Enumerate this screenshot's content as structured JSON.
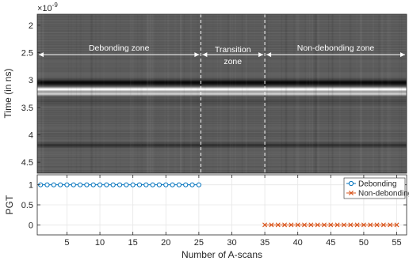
{
  "chart_data": [
    {
      "type": "heatmap",
      "ylabel": "Time (in ns)",
      "y_exponent_label": "×10",
      "y_exponent_power": "-9",
      "xlim": [
        0.5,
        56.5
      ],
      "ylim": [
        4.7,
        1.8
      ],
      "yticks": [
        "2",
        "2.5",
        "3",
        "3.5",
        "4",
        "4.5"
      ],
      "ytick_values": [
        2,
        2.5,
        3,
        3.5,
        4,
        4.5
      ],
      "colormap": "gray",
      "bands": [
        {
          "y": 3.05,
          "level": 0.03,
          "width": 0.05
        },
        {
          "y": 3.17,
          "level": 1.0,
          "width": 0.035
        },
        {
          "y": 3.25,
          "level": 0.82,
          "width": 0.03
        },
        {
          "y": 3.38,
          "level": 0.28,
          "width": 0.05
        },
        {
          "y": 4.19,
          "level": 0.18,
          "width": 0.04
        }
      ],
      "dashed_lines_x": [
        25.3,
        35
      ],
      "zones": [
        {
          "label_lines": [
            "Debonding zone"
          ],
          "from": 0.5,
          "to": 25.3,
          "y": 2.48
        },
        {
          "label_lines": [
            "Transition",
            "zone"
          ],
          "from": 25.3,
          "to": 35,
          "y": 2.48
        },
        {
          "label_lines": [
            "Non-debonding zone"
          ],
          "from": 35,
          "to": 56.5,
          "y": 2.48
        }
      ]
    },
    {
      "type": "line",
      "xlabel": "Number of A-scans",
      "ylabel": "PGT",
      "xlim": [
        0.5,
        56.5
      ],
      "ylim": [
        -0.25,
        1.25
      ],
      "xticks": [
        "5",
        "10",
        "15",
        "20",
        "25",
        "30",
        "35",
        "40",
        "45",
        "50",
        "55"
      ],
      "xtick_values": [
        5,
        10,
        15,
        20,
        25,
        30,
        35,
        40,
        45,
        50,
        55
      ],
      "yticks": [
        "0",
        "0.5",
        "1"
      ],
      "ytick_values": [
        0,
        0.5,
        1
      ],
      "legend": "top-right",
      "series": [
        {
          "name": "Debonding",
          "color": "#0072BD",
          "marker": "circle",
          "x_start": 1,
          "x_end": 25,
          "y": 1
        },
        {
          "name": "Non-debonding",
          "color": "#D95319",
          "marker": "cross",
          "x_start": 35,
          "x_end": 55,
          "y": 0
        }
      ]
    }
  ]
}
